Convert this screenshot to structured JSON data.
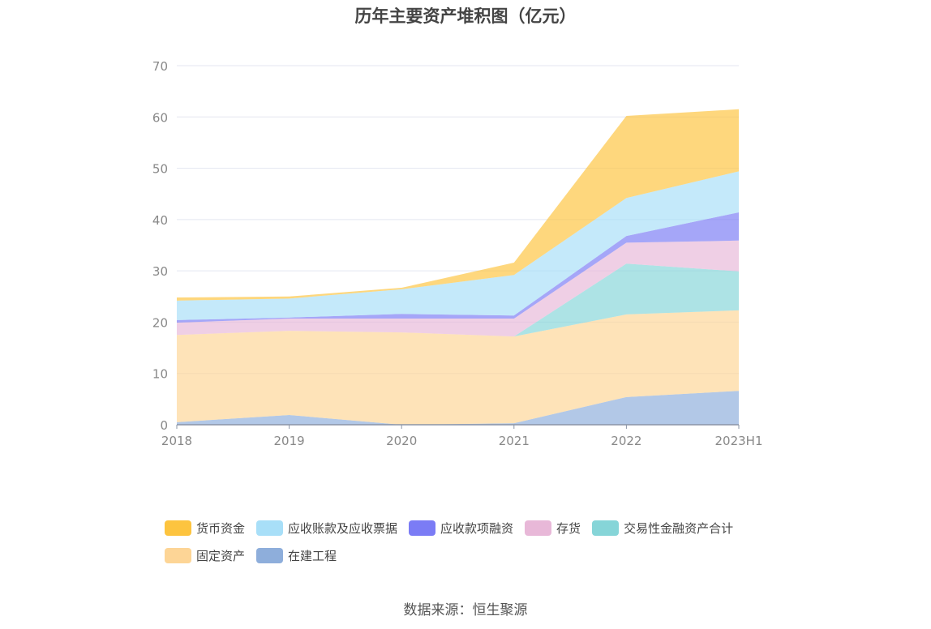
{
  "chart_data": {
    "type": "area",
    "stacked": true,
    "title": "历年主要资产堆积图（亿元）",
    "categories": [
      "2018",
      "2019",
      "2020",
      "2021",
      "2022",
      "2023H1"
    ],
    "ylim": [
      0,
      70
    ],
    "yticks": [
      0,
      10,
      20,
      30,
      40,
      50,
      60,
      70
    ],
    "grid": true,
    "legend_position": "bottom",
    "series": [
      {
        "name": "在建工程",
        "color": "#8eaedb",
        "values": [
          0.5,
          1.9,
          0,
          0.3,
          5.4,
          6.6
        ]
      },
      {
        "name": "固定资产",
        "color": "#fdd596",
        "values": [
          17.0,
          16.4,
          18.0,
          16.9,
          16.1,
          15.7
        ]
      },
      {
        "name": "交易性金融资产合计",
        "color": "#86d5d8",
        "values": [
          0,
          0,
          0,
          0,
          9.9,
          7.6
        ]
      },
      {
        "name": "存货",
        "color": "#e8b8d8",
        "values": [
          2.4,
          2.4,
          2.7,
          3.5,
          4.1,
          6.0
        ]
      },
      {
        "name": "应收款项融资",
        "color": "#7b7cf5",
        "values": [
          0.5,
          0.2,
          0.9,
          0.6,
          1.3,
          5.5
        ]
      },
      {
        "name": "应收账款及应收票据",
        "color": "#a8dff8",
        "values": [
          3.8,
          3.7,
          4.8,
          7.9,
          7.4,
          8.0
        ]
      },
      {
        "name": "货币资金",
        "color": "#fdc43f",
        "values": [
          0.6,
          0.4,
          0.3,
          2.4,
          16.0,
          12.1
        ]
      }
    ],
    "legend_order": [
      "货币资金",
      "应收账款及应收票据",
      "应收款项融资",
      "存货",
      "交易性金融资产合计",
      "固定资产",
      "在建工程"
    ]
  },
  "source": "数据来源：恒生聚源"
}
